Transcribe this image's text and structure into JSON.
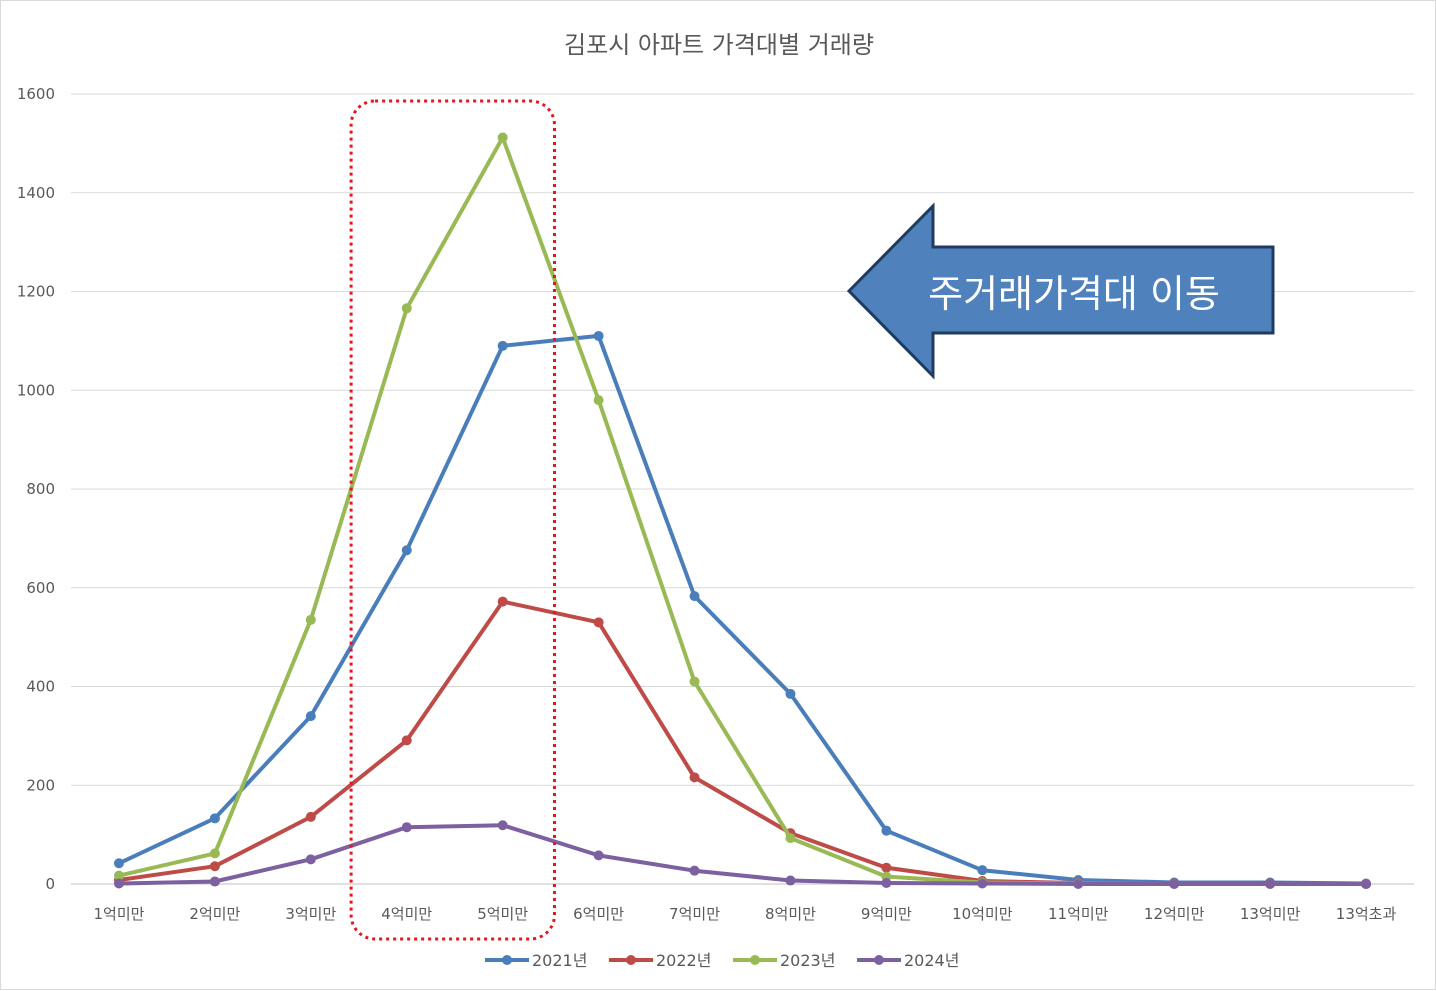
{
  "chart_data": {
    "type": "line",
    "title": "김포시 아파트 가격대별 거래량",
    "categories": [
      "1억미만",
      "2억미만",
      "3억미만",
      "4억미만",
      "5억미만",
      "6억미만",
      "7억미만",
      "8억미만",
      "9억미만",
      "10억미만",
      "11억미만",
      "12억미만",
      "13억미만",
      "13억초과"
    ],
    "ylim": [
      0,
      1600
    ],
    "yticks": [
      "0",
      "200",
      "400",
      "600",
      "800",
      "1000",
      "1200",
      "1400",
      "1600"
    ],
    "grid": true,
    "legend_position": "bottom",
    "series": [
      {
        "name": "2021년",
        "color": "#4a7ebb",
        "values": [
          42,
          133,
          340,
          676,
          1090,
          1110,
          583,
          385,
          108,
          28,
          8,
          3,
          3,
          1
        ]
      },
      {
        "name": "2022년",
        "color": "#be4b48",
        "values": [
          8,
          36,
          136,
          291,
          572,
          530,
          216,
          103,
          33,
          6,
          2,
          1,
          1,
          0
        ]
      },
      {
        "name": "2023년",
        "color": "#98b954",
        "values": [
          17,
          62,
          535,
          1166,
          1512,
          980,
          410,
          93,
          15,
          3,
          1,
          0,
          0,
          0
        ]
      },
      {
        "name": "2024년",
        "color": "#7d60a0",
        "values": [
          1,
          5,
          50,
          115,
          119,
          58,
          27,
          7,
          2,
          1,
          0,
          0,
          0,
          0
        ]
      }
    ],
    "annotations": {
      "callout_text": "주거래가격대 이동",
      "callout_color": "#4f81bd",
      "highlight_color": "#e8141e",
      "highlight_categories": [
        "4억미만",
        "5억미만"
      ]
    }
  }
}
